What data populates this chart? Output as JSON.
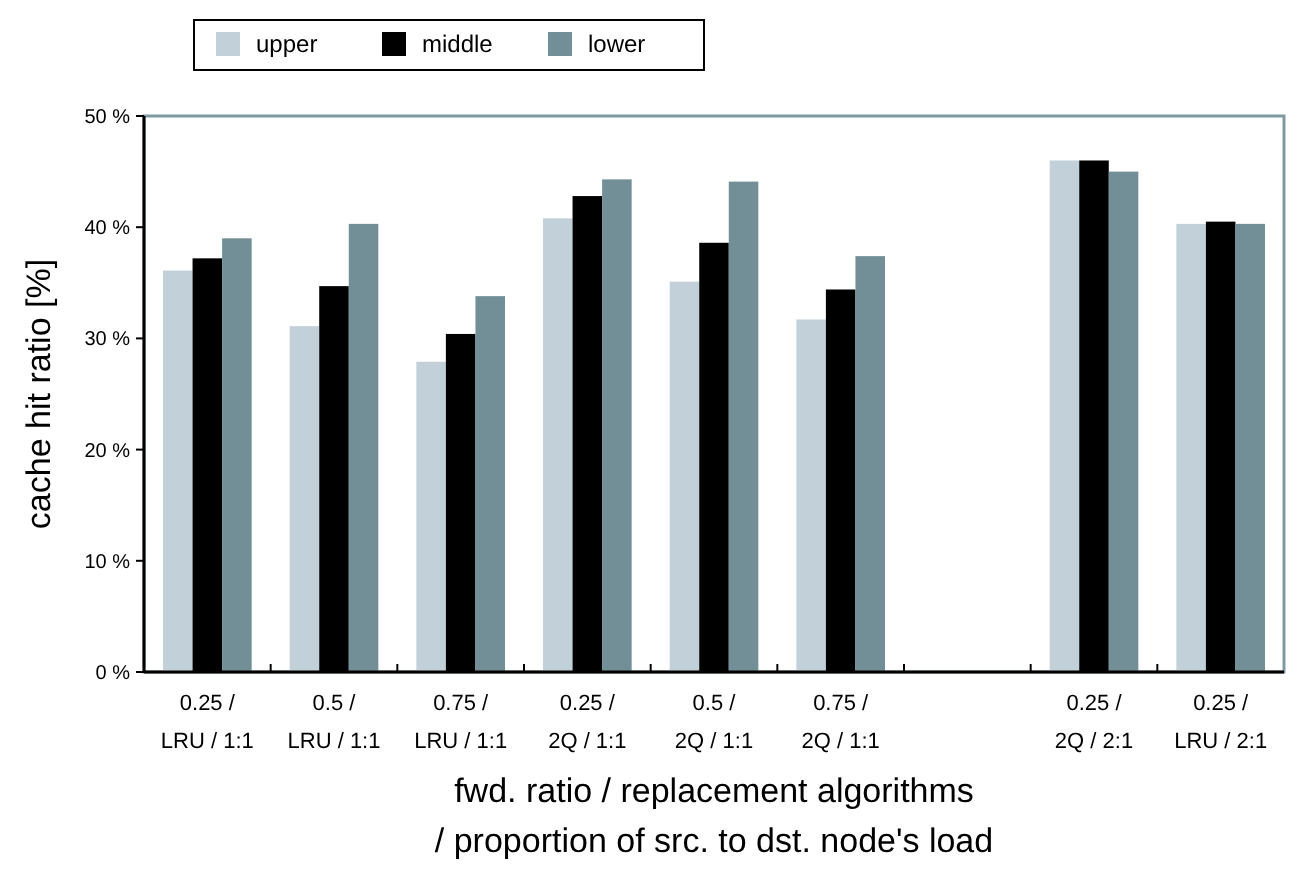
{
  "chart_data": {
    "type": "bar",
    "xlabel": "fwd. ratio / replacement algorithms\n/ proportion of src. to dst. node's load",
    "ylabel": "cache hit ratio [%]",
    "categories": [
      "0.25 /\nLRU / 1:1",
      "0.5 /\nLRU / 1:1",
      "0.75 /\nLRU / 1:1",
      "0.25 /\n2Q / 1:1",
      "0.5 /\n2Q / 1:1",
      "0.75 /\n2Q / 1:1",
      null,
      "0.25 /\n2Q / 2:1",
      "0.25 /\nLRU / 2:1"
    ],
    "series": [
      {
        "name": "upper",
        "color": "#c2d1d9",
        "values": [
          36.1,
          31.1,
          27.9,
          40.8,
          35.1,
          31.7,
          null,
          46.0,
          40.3
        ]
      },
      {
        "name": "middle",
        "color": "#000000",
        "values": [
          37.2,
          34.7,
          30.4,
          42.8,
          38.6,
          34.4,
          null,
          46.0,
          40.5
        ]
      },
      {
        "name": "lower",
        "color": "#728f97",
        "values": [
          39.0,
          40.3,
          33.8,
          44.3,
          44.1,
          37.4,
          null,
          45.0,
          40.3
        ]
      }
    ],
    "ylim": [
      0,
      50
    ],
    "yticks": [
      {
        "value": 0,
        "label": "0 %"
      },
      {
        "value": 10,
        "label": "10 %"
      },
      {
        "value": 20,
        "label": "20 %"
      },
      {
        "value": 30,
        "label": "30 %"
      },
      {
        "value": 40,
        "label": "40 %"
      },
      {
        "value": 50,
        "label": "50 %"
      }
    ],
    "grid": false,
    "legend": "top"
  }
}
